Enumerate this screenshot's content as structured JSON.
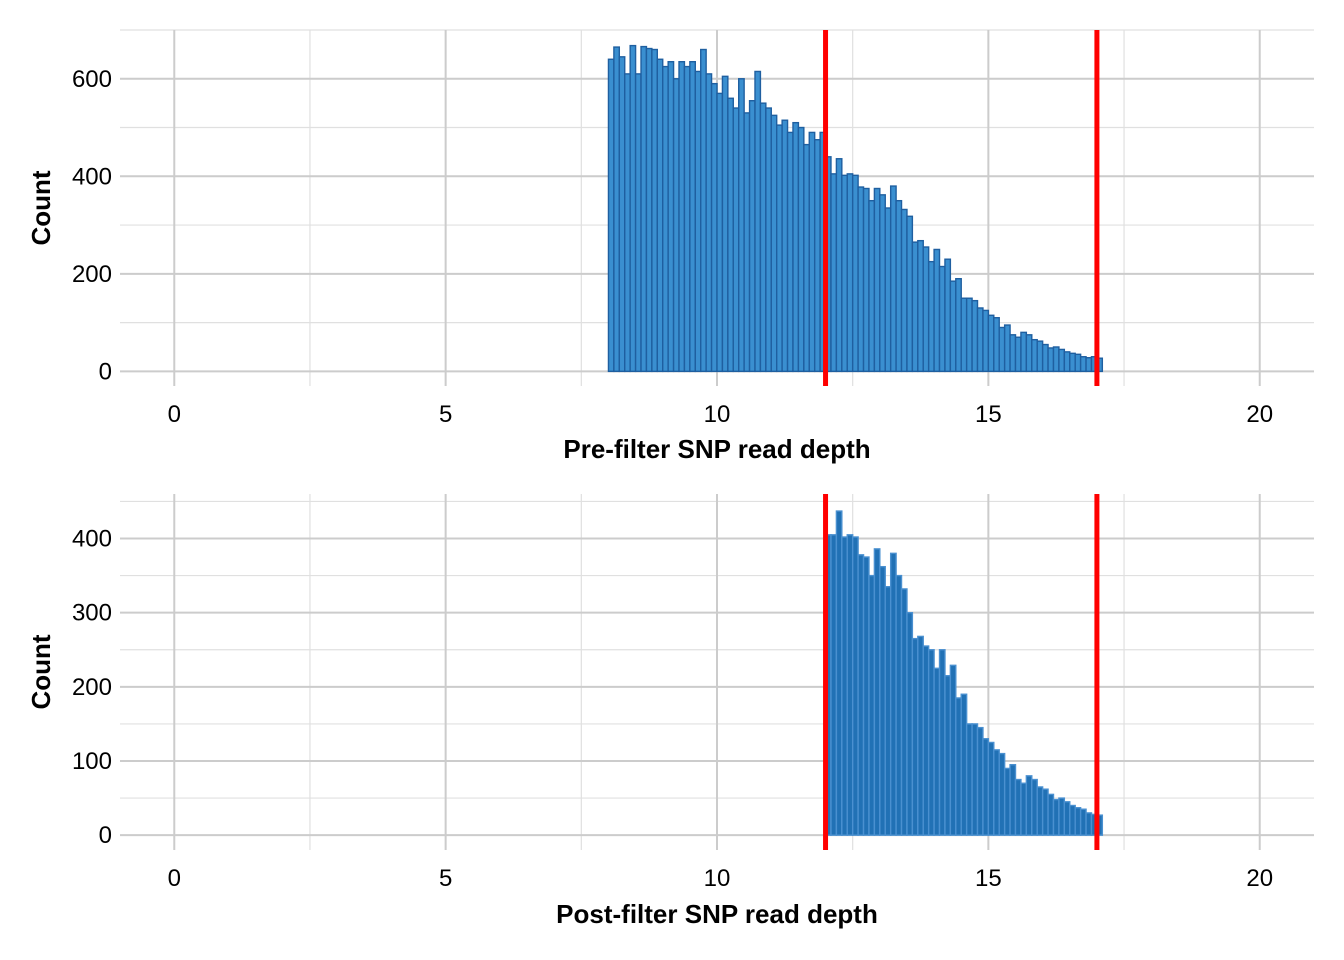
{
  "chart_data": [
    {
      "type": "bar",
      "subtype": "histogram",
      "xlabel": "Pre-filter SNP read depth",
      "ylabel": "Count",
      "xlim": [
        -1,
        21
      ],
      "ylim": [
        -30,
        700
      ],
      "x_ticks": [
        0,
        5,
        10,
        15,
        20
      ],
      "y_ticks": [
        0,
        200,
        400,
        600
      ],
      "grid": true,
      "bin_width": 0.1,
      "x": [
        8.0,
        8.1,
        8.2,
        8.3,
        8.4,
        8.5,
        8.6,
        8.7,
        8.8,
        8.9,
        9.0,
        9.1,
        9.2,
        9.3,
        9.4,
        9.5,
        9.6,
        9.7,
        9.8,
        9.9,
        10.0,
        10.1,
        10.2,
        10.3,
        10.4,
        10.5,
        10.6,
        10.7,
        10.8,
        10.9,
        11.0,
        11.1,
        11.2,
        11.3,
        11.4,
        11.5,
        11.6,
        11.7,
        11.8,
        11.9,
        12.0,
        12.1,
        12.2,
        12.3,
        12.4,
        12.5,
        12.6,
        12.7,
        12.8,
        12.9,
        13.0,
        13.1,
        13.2,
        13.3,
        13.4,
        13.5,
        13.6,
        13.7,
        13.8,
        13.9,
        14.0,
        14.1,
        14.2,
        14.3,
        14.4,
        14.5,
        14.6,
        14.7,
        14.8,
        14.9,
        15.0,
        15.1,
        15.2,
        15.3,
        15.4,
        15.5,
        15.6,
        15.7,
        15.8,
        15.9,
        16.0,
        16.1,
        16.2,
        16.3,
        16.4,
        16.5,
        16.6,
        16.7,
        16.8,
        16.9,
        17.0
      ],
      "values": [
        640,
        665,
        645,
        610,
        668,
        610,
        666,
        662,
        660,
        640,
        625,
        635,
        600,
        635,
        625,
        635,
        615,
        660,
        610,
        590,
        570,
        605,
        560,
        540,
        600,
        530,
        555,
        615,
        550,
        540,
        525,
        505,
        515,
        490,
        510,
        500,
        465,
        490,
        475,
        490,
        440,
        405,
        436,
        402,
        405,
        402,
        378,
        375,
        350,
        375,
        362,
        335,
        380,
        350,
        332,
        318,
        265,
        268,
        255,
        225,
        250,
        215,
        230,
        185,
        190,
        150,
        150,
        145,
        130,
        125,
        115,
        110,
        90,
        95,
        75,
        70,
        80,
        75,
        65,
        62,
        55,
        48,
        50,
        45,
        40,
        37,
        35,
        30,
        28,
        30,
        27
      ]
    },
    {
      "type": "bar",
      "subtype": "histogram",
      "xlabel": "Post-filter SNP read depth",
      "ylabel": "Count",
      "xlim": [
        -1,
        21
      ],
      "ylim": [
        -20,
        460
      ],
      "x_ticks": [
        0,
        5,
        10,
        15,
        20
      ],
      "y_ticks": [
        0,
        100,
        200,
        300,
        400
      ],
      "grid": true,
      "bin_width": 0.1,
      "x": [
        12.0,
        12.1,
        12.2,
        12.3,
        12.4,
        12.5,
        12.6,
        12.7,
        12.8,
        12.9,
        13.0,
        13.1,
        13.2,
        13.3,
        13.4,
        13.5,
        13.6,
        13.7,
        13.8,
        13.9,
        14.0,
        14.1,
        14.2,
        14.3,
        14.4,
        14.5,
        14.6,
        14.7,
        14.8,
        14.9,
        15.0,
        15.1,
        15.2,
        15.3,
        15.4,
        15.5,
        15.6,
        15.7,
        15.8,
        15.9,
        16.0,
        16.1,
        16.2,
        16.3,
        16.4,
        16.5,
        16.6,
        16.7,
        16.8,
        16.9,
        17.0
      ],
      "values": [
        405,
        405,
        437,
        402,
        405,
        402,
        378,
        375,
        350,
        386,
        362,
        335,
        380,
        350,
        332,
        300,
        265,
        268,
        255,
        250,
        225,
        250,
        215,
        229,
        185,
        190,
        150,
        150,
        145,
        130,
        125,
        115,
        110,
        90,
        95,
        75,
        70,
        80,
        75,
        65,
        62,
        55,
        48,
        50,
        45,
        40,
        37,
        35,
        30,
        28,
        27
      ]
    }
  ],
  "cutoff_lines": [
    12,
    17
  ],
  "colors": {
    "bar_fill_pre": "#3a8fd0",
    "bar_outline_pre": "#1f5fa0",
    "bar_fill_post": "#2171b5",
    "bar_outline_post": "#4a90d0",
    "cutoff": "#ff0000",
    "grid_major": "#cccccc",
    "grid_minor": "#e0e0e0"
  }
}
